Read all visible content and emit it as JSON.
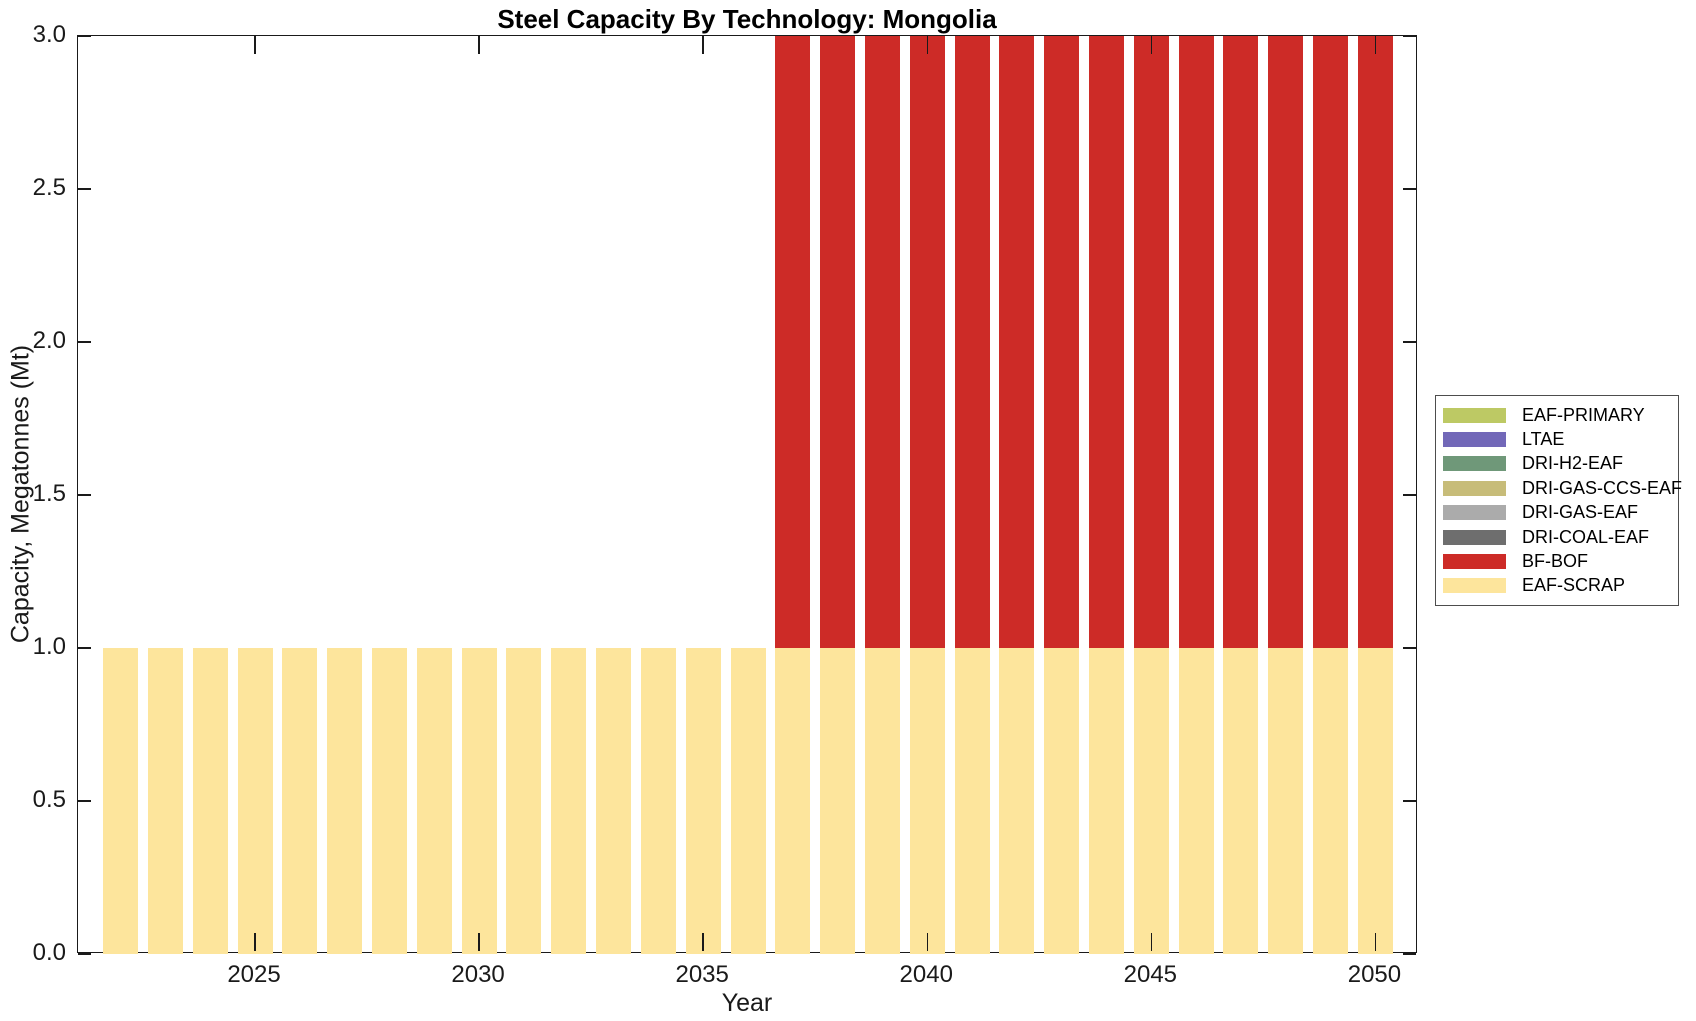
{
  "figure": {
    "title": "Steel Capacity By Technology: Mongolia",
    "xlabel": "Year",
    "ylabel": "Capacity, Megatonnes (Mt)"
  },
  "axis": {
    "x_ticks": [
      "2025",
      "2030",
      "2035",
      "2040",
      "2045",
      "2050"
    ],
    "y_ticks": [
      "0.0",
      "0.5",
      "1.0",
      "1.5",
      "2.0",
      "2.5",
      "3.0"
    ]
  },
  "legend": {
    "items": [
      {
        "label": "EAF-PRIMARY",
        "color": "#bdc964"
      },
      {
        "label": "LTAE",
        "color": "#7268b8"
      },
      {
        "label": "DRI-H2-EAF",
        "color": "#6f9879"
      },
      {
        "label": "DRI-GAS-CCS-EAF",
        "color": "#c7bc79"
      },
      {
        "label": "DRI-GAS-EAF",
        "color": "#ababab"
      },
      {
        "label": "DRI-COAL-EAF",
        "color": "#6e6e6e"
      },
      {
        "label": "BF-BOF",
        "color": "#cd2b27"
      },
      {
        "label": "EAF-SCRAP",
        "color": "#fde59c"
      }
    ]
  },
  "chart_data": {
    "type": "bar",
    "stacked": true,
    "title": "Steel Capacity By Technology: Mongolia",
    "xlabel": "Year",
    "ylabel": "Capacity, Megatonnes (Mt)",
    "x": [
      2022,
      2023,
      2024,
      2025,
      2026,
      2027,
      2028,
      2029,
      2030,
      2031,
      2032,
      2033,
      2034,
      2035,
      2036,
      2037,
      2038,
      2039,
      2040,
      2041,
      2042,
      2043,
      2044,
      2045,
      2046,
      2047,
      2048,
      2049,
      2050
    ],
    "series": [
      {
        "name": "EAF-PRIMARY",
        "color": "#bdc964",
        "values": [
          0,
          0,
          0,
          0,
          0,
          0,
          0,
          0,
          0,
          0,
          0,
          0,
          0,
          0,
          0,
          0,
          0,
          0,
          0,
          0,
          0,
          0,
          0,
          0,
          0,
          0,
          0,
          0,
          0
        ]
      },
      {
        "name": "LTAE",
        "color": "#7268b8",
        "values": [
          0,
          0,
          0,
          0,
          0,
          0,
          0,
          0,
          0,
          0,
          0,
          0,
          0,
          0,
          0,
          0,
          0,
          0,
          0,
          0,
          0,
          0,
          0,
          0,
          0,
          0,
          0,
          0,
          0
        ]
      },
      {
        "name": "DRI-H2-EAF",
        "color": "#6f9879",
        "values": [
          0,
          0,
          0,
          0,
          0,
          0,
          0,
          0,
          0,
          0,
          0,
          0,
          0,
          0,
          0,
          0,
          0,
          0,
          0,
          0,
          0,
          0,
          0,
          0,
          0,
          0,
          0,
          0,
          0
        ]
      },
      {
        "name": "DRI-GAS-CCS-EAF",
        "color": "#c7bc79",
        "values": [
          0,
          0,
          0,
          0,
          0,
          0,
          0,
          0,
          0,
          0,
          0,
          0,
          0,
          0,
          0,
          0,
          0,
          0,
          0,
          0,
          0,
          0,
          0,
          0,
          0,
          0,
          0,
          0,
          0
        ]
      },
      {
        "name": "DRI-GAS-EAF",
        "color": "#ababab",
        "values": [
          0,
          0,
          0,
          0,
          0,
          0,
          0,
          0,
          0,
          0,
          0,
          0,
          0,
          0,
          0,
          0,
          0,
          0,
          0,
          0,
          0,
          0,
          0,
          0,
          0,
          0,
          0,
          0,
          0
        ]
      },
      {
        "name": "DRI-COAL-EAF",
        "color": "#6e6e6e",
        "values": [
          0,
          0,
          0,
          0,
          0,
          0,
          0,
          0,
          0,
          0,
          0,
          0,
          0,
          0,
          0,
          0,
          0,
          0,
          0,
          0,
          0,
          0,
          0,
          0,
          0,
          0,
          0,
          0,
          0
        ]
      },
      {
        "name": "BF-BOF",
        "color": "#cd2b27",
        "values": [
          0,
          0,
          0,
          0,
          0,
          0,
          0,
          0,
          0,
          0,
          0,
          0,
          0,
          0,
          0,
          2,
          2,
          2,
          2,
          2,
          2,
          2,
          2,
          2,
          2,
          2,
          2,
          2,
          2
        ]
      },
      {
        "name": "EAF-SCRAP",
        "color": "#fde59c",
        "values": [
          1,
          1,
          1,
          1,
          1,
          1,
          1,
          1,
          1,
          1,
          1,
          1,
          1,
          1,
          1,
          1,
          1,
          1,
          1,
          1,
          1,
          1,
          1,
          1,
          1,
          1,
          1,
          1,
          1
        ]
      }
    ],
    "xlim": [
      2021.05,
      2050.95
    ],
    "ylim": [
      0,
      3
    ],
    "x_tick_values": [
      2025,
      2030,
      2035,
      2040,
      2045,
      2050
    ],
    "y_tick_values": [
      0,
      0.5,
      1,
      1.5,
      2,
      2.5,
      3
    ],
    "grid": false,
    "legend_position": "outside-right"
  }
}
